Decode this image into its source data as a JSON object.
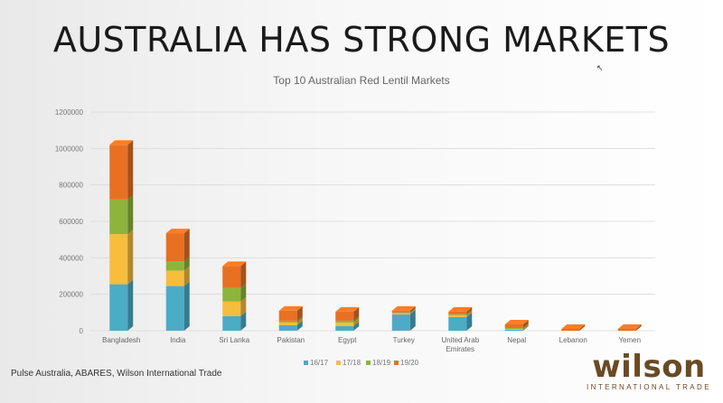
{
  "slide": {
    "title": "AUSTRALIA HAS STRONG MARKETS",
    "source": "Pulse Australia, ABARES, Wilson International Trade",
    "logo_word": "wilson",
    "logo_tagline": "INTERNATIONAL TRADE"
  },
  "chart_data": {
    "type": "bar",
    "stacked": true,
    "title": "Top 10 Australian Red Lentil Markets",
    "categories": [
      "Bangladesh",
      "India",
      "Sri Lanka",
      "Pakistan",
      "Egypt",
      "Turkey",
      "United Arab Emirates",
      "Nepal",
      "Lebanon",
      "Yemen"
    ],
    "series": [
      {
        "name": "16/17",
        "color": "#4bacc6",
        "values": [
          255000,
          245000,
          80000,
          30000,
          25000,
          90000,
          75000,
          5000,
          0,
          0
        ]
      },
      {
        "name": "17/18",
        "color": "#f7bd3d",
        "values": [
          275000,
          85000,
          80000,
          15000,
          20000,
          5000,
          10000,
          5000,
          0,
          0
        ]
      },
      {
        "name": "18/19",
        "color": "#8eb43c",
        "values": [
          190000,
          50000,
          75000,
          10000,
          10000,
          5000,
          5000,
          5000,
          0,
          0
        ]
      },
      {
        "name": "19/20",
        "color": "#e87022",
        "values": [
          300000,
          155000,
          120000,
          55000,
          50000,
          10000,
          15000,
          20000,
          10000,
          10000
        ]
      }
    ],
    "ylim": [
      0,
      1200000
    ],
    "yticks": [
      0,
      200000,
      400000,
      600000,
      800000,
      1000000,
      1200000
    ],
    "grid": true,
    "legend": "bottom"
  }
}
